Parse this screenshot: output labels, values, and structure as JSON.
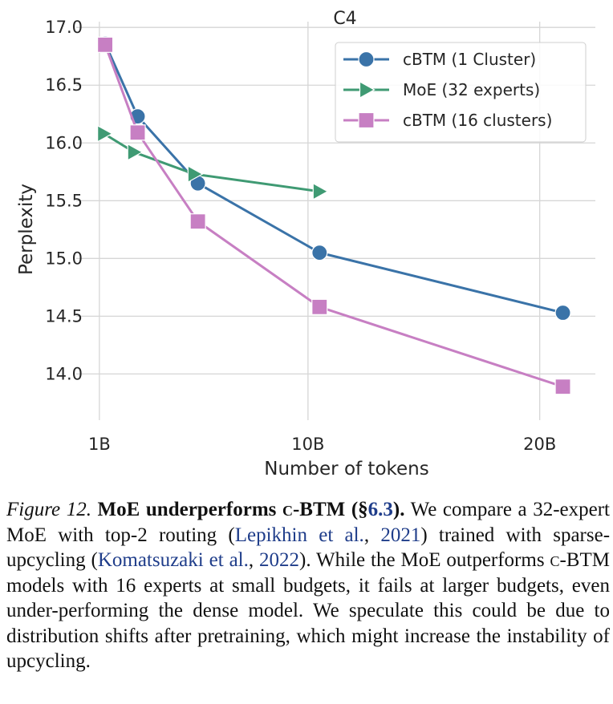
{
  "chart_data": {
    "type": "line",
    "title": "C4",
    "xlabel": "Number of tokens",
    "ylabel": "Perplexity",
    "xlim": [
      0,
      22.4
    ],
    "ylim": [
      13.6,
      17.05
    ],
    "xticks": [
      {
        "value": 1,
        "label": "1B"
      },
      {
        "value": 10,
        "label": "10B"
      },
      {
        "value": 20,
        "label": "20B"
      }
    ],
    "yticks": [
      {
        "value": 14.0,
        "label": "14.0"
      },
      {
        "value": 14.5,
        "label": "14.5"
      },
      {
        "value": 15.0,
        "label": "15.0"
      },
      {
        "value": 15.5,
        "label": "15.5"
      },
      {
        "value": 16.0,
        "label": "16.0"
      },
      {
        "value": 16.5,
        "label": "16.5"
      },
      {
        "value": 17.0,
        "label": "17.0"
      }
    ],
    "grid": true,
    "legend_position": "top-right",
    "series": [
      {
        "name": "cBTM (1 Cluster)",
        "color": "#3a73a8",
        "marker": "circle",
        "points": [
          {
            "x": 1.25,
            "y": 16.86
          },
          {
            "x": 2.65,
            "y": 16.23
          },
          {
            "x": 5.25,
            "y": 15.65
          },
          {
            "x": 10.5,
            "y": 15.05
          },
          {
            "x": 21.0,
            "y": 14.53
          }
        ]
      },
      {
        "name": "MoE (32 experts)",
        "color": "#3f9a73",
        "marker": "triangle-right",
        "points": [
          {
            "x": 1.2,
            "y": 16.08
          },
          {
            "x": 2.5,
            "y": 15.92
          },
          {
            "x": 5.1,
            "y": 15.73
          },
          {
            "x": 10.5,
            "y": 15.58
          }
        ]
      },
      {
        "name": "cBTM (16 clusters)",
        "color": "#c77fc3",
        "marker": "square",
        "points": [
          {
            "x": 1.25,
            "y": 16.85
          },
          {
            "x": 2.65,
            "y": 16.09
          },
          {
            "x": 5.25,
            "y": 15.32
          },
          {
            "x": 10.5,
            "y": 14.58
          },
          {
            "x": 21.0,
            "y": 13.89
          }
        ]
      }
    ]
  },
  "caption": {
    "fig_label": "Figure 12.",
    "bold_title_a": "MoE underperforms ",
    "bold_title_sc": "c",
    "bold_title_b": "-BTM (§",
    "bold_title_ref": "6.3",
    "bold_title_c": ").",
    "text_1": " We compare a 32-expert MoE with top-2 routing (",
    "ref_1": "Lepikhin et al.",
    "text_2": ", ",
    "ref_1_year": "2021",
    "text_3": ") trained with sparse-upcycling (",
    "ref_2": "Komatsuzaki et al.",
    "text_4": ", ",
    "ref_2_year": "2022",
    "text_5": "). While the MoE outperforms ",
    "sc_2": "c",
    "text_6": "-BTM models with 16 experts at small budgets, it fails at larger budgets, even under-performing the dense model. We speculate this could be due to distribution shifts after pretraining, which might increase the instability of upcycling."
  }
}
